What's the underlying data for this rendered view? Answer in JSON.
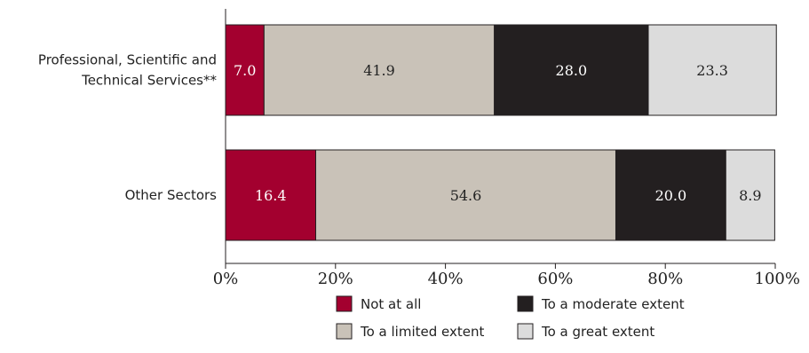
{
  "chart_data": {
    "type": "bar",
    "orientation": "horizontal",
    "stacked": true,
    "categories": [
      "Professional, Scientific and Technical Services**",
      "Other Sectors"
    ],
    "category_label_lines": [
      [
        "Professional, Scientific and",
        "Technical Services**"
      ],
      [
        "Other Sectors"
      ]
    ],
    "series": [
      {
        "name": "Not at all",
        "values": [
          7.0,
          16.4
        ],
        "labels": [
          "7.0",
          "16.4"
        ],
        "color": "#a3002f",
        "label_color": "#ffffff"
      },
      {
        "name": "To a limited extent",
        "values": [
          41.9,
          54.6
        ],
        "labels": [
          "41.9",
          "54.6"
        ],
        "color": "#c9c2b8",
        "label_color": "#222222"
      },
      {
        "name": "To a moderate extent",
        "values": [
          28.0,
          20.0
        ],
        "labels": [
          "28.0",
          "20.0"
        ],
        "color": "#231f20",
        "label_color": "#ffffff"
      },
      {
        "name": "To a great extent",
        "values": [
          23.3,
          8.9
        ],
        "labels": [
          "23.3",
          "8.9"
        ],
        "color": "#dcdcdc",
        "label_color": "#222222"
      }
    ],
    "xlim": [
      0,
      100
    ],
    "xticks": [
      0,
      20,
      40,
      60,
      80,
      100
    ],
    "xtick_labels": [
      "0%",
      "20%",
      "40%",
      "60%",
      "80%",
      "100%"
    ],
    "grid": false,
    "legend_position": "bottom-center",
    "title": "",
    "xlabel": "",
    "ylabel": ""
  }
}
